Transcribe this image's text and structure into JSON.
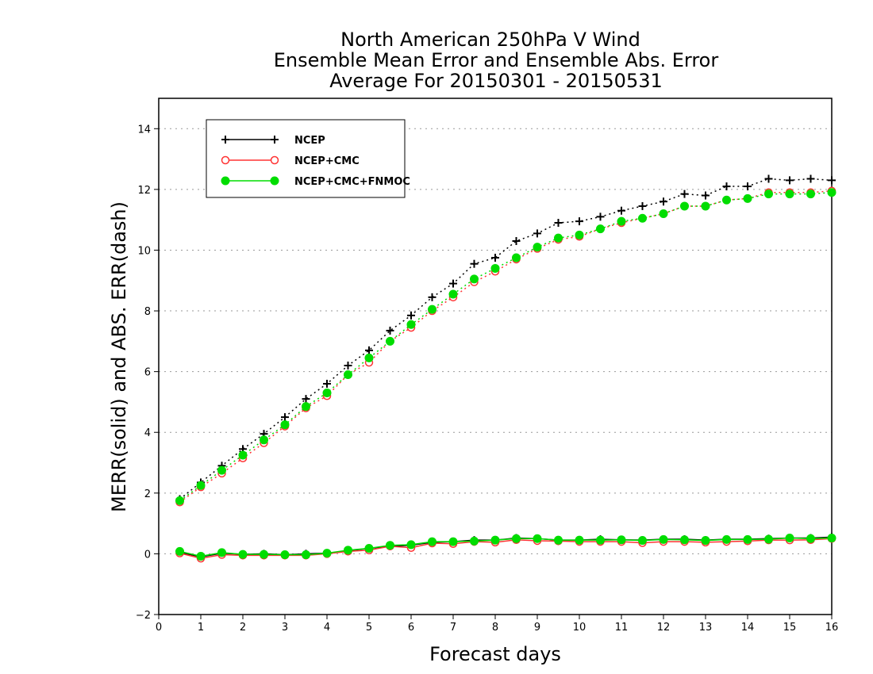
{
  "chart_data": {
    "type": "line",
    "title_lines": [
      "North American 250hPa V Wind",
      "Ensemble Mean Error and Ensemble Abs. Error",
      "Average For 20150301 - 20150531"
    ],
    "xlabel": "Forecast days",
    "ylabel": "MERR(solid) and ABS. ERR(dash)",
    "xlim": [
      0,
      16
    ],
    "ylim": [
      -2,
      15
    ],
    "xticks": [
      "0",
      "1",
      "2",
      "3",
      "4",
      "5",
      "6",
      "7",
      "8",
      "9",
      "10",
      "11",
      "12",
      "13",
      "14",
      "15",
      "16"
    ],
    "yticks": [
      "−2",
      "0",
      "2",
      "4",
      "6",
      "8",
      "10",
      "12",
      "14"
    ],
    "ytick_values": [
      -2,
      0,
      2,
      4,
      6,
      8,
      10,
      12,
      14
    ],
    "grid": "horizontal dotted",
    "legend_position": "top-left",
    "x": [
      0.5,
      1,
      1.5,
      2,
      2.5,
      3,
      3.5,
      4,
      4.5,
      5,
      5.5,
      6,
      6.5,
      7,
      7.5,
      8,
      8.5,
      9,
      9.5,
      10,
      10.5,
      11,
      11.5,
      12,
      12.5,
      13,
      13.5,
      14,
      14.5,
      15,
      15.5,
      16
    ],
    "series": [
      {
        "name": "NCEP",
        "color": "#000000",
        "marker": "plus",
        "abs_err": [
          1.8,
          2.35,
          2.9,
          3.45,
          3.95,
          4.5,
          5.1,
          5.6,
          6.2,
          6.7,
          7.35,
          7.85,
          8.45,
          8.9,
          9.55,
          9.75,
          10.3,
          10.55,
          10.9,
          10.95,
          11.1,
          11.3,
          11.45,
          11.6,
          11.85,
          11.8,
          12.1,
          12.1,
          12.35,
          12.3,
          12.35,
          12.3
        ],
        "mean_err": [
          0.05,
          -0.1,
          0.02,
          -0.02,
          0.0,
          -0.03,
          0.0,
          0.02,
          0.1,
          0.18,
          0.25,
          0.28,
          0.38,
          0.4,
          0.45,
          0.45,
          0.52,
          0.5,
          0.45,
          0.45,
          0.48,
          0.46,
          0.45,
          0.48,
          0.48,
          0.45,
          0.48,
          0.48,
          0.5,
          0.52,
          0.52,
          0.55
        ]
      },
      {
        "name": "NCEP+CMC",
        "color": "#ff3333",
        "marker": "open-circle",
        "abs_err": [
          1.7,
          2.2,
          2.65,
          3.15,
          3.65,
          4.2,
          4.8,
          5.2,
          5.9,
          6.3,
          7.0,
          7.45,
          8.0,
          8.45,
          8.95,
          9.3,
          9.7,
          10.05,
          10.35,
          10.45,
          10.7,
          10.9,
          11.05,
          11.2,
          11.45,
          11.45,
          11.65,
          11.7,
          11.9,
          11.9,
          11.9,
          11.95
        ],
        "mean_err": [
          0.02,
          -0.15,
          -0.03,
          -0.05,
          -0.05,
          -0.05,
          -0.05,
          0.0,
          0.08,
          0.12,
          0.25,
          0.2,
          0.35,
          0.33,
          0.4,
          0.38,
          0.46,
          0.43,
          0.42,
          0.4,
          0.4,
          0.4,
          0.36,
          0.4,
          0.4,
          0.38,
          0.4,
          0.42,
          0.45,
          0.45,
          0.46,
          0.5
        ]
      },
      {
        "name": "NCEP+CMC+FNMOC",
        "color": "#00dd00",
        "marker": "filled-circle",
        "abs_err": [
          1.75,
          2.25,
          2.75,
          3.25,
          3.75,
          4.25,
          4.85,
          5.3,
          5.9,
          6.45,
          7.0,
          7.55,
          8.05,
          8.55,
          9.05,
          9.4,
          9.75,
          10.1,
          10.4,
          10.5,
          10.7,
          10.95,
          11.05,
          11.2,
          11.45,
          11.45,
          11.65,
          11.7,
          11.85,
          11.85,
          11.85,
          11.9
        ],
        "mean_err": [
          0.08,
          -0.08,
          0.04,
          -0.02,
          -0.02,
          -0.03,
          -0.03,
          0.02,
          0.12,
          0.18,
          0.28,
          0.3,
          0.4,
          0.4,
          0.42,
          0.45,
          0.5,
          0.5,
          0.45,
          0.45,
          0.45,
          0.46,
          0.44,
          0.47,
          0.46,
          0.44,
          0.47,
          0.47,
          0.48,
          0.52,
          0.5,
          0.52
        ]
      }
    ]
  }
}
